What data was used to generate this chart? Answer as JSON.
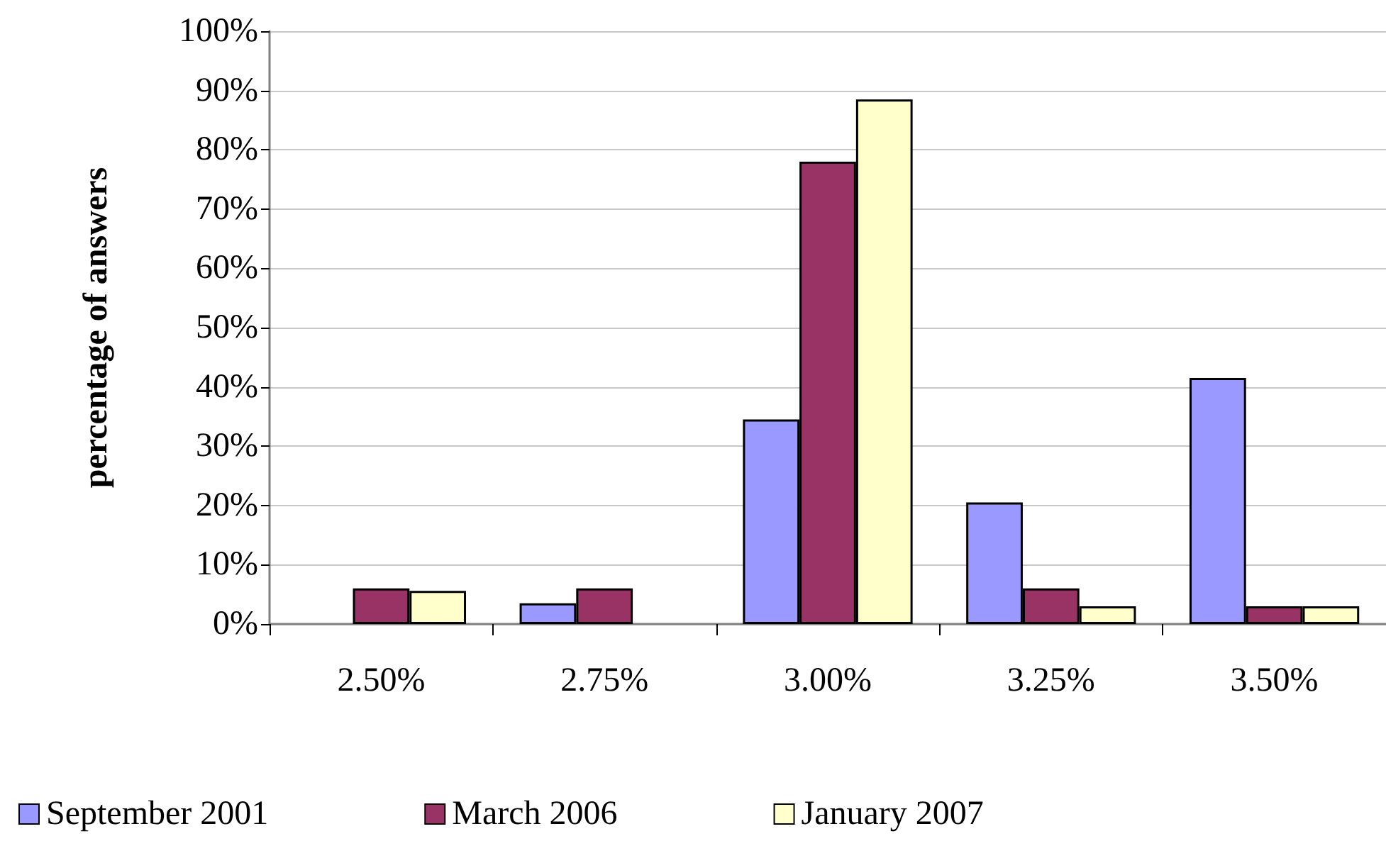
{
  "chart_data": {
    "type": "bar",
    "ylabel": "percentage of answers",
    "categories": [
      "2.50%",
      "2.75%",
      "3.00%",
      "3.25%",
      "3.50%"
    ],
    "series": [
      {
        "name": "September 2001",
        "color": "#9999ff",
        "values": [
          null,
          3.5,
          34.5,
          20.5,
          41.5
        ]
      },
      {
        "name": "March 2006",
        "color": "#993366",
        "values": [
          6,
          6,
          78,
          6,
          3
        ]
      },
      {
        "name": "January 2007",
        "color": "#ffffcc",
        "values": [
          5.6,
          null,
          88.5,
          3,
          3
        ]
      }
    ],
    "ylim": [
      0,
      100
    ],
    "yticks": [
      {
        "value": 0,
        "label": "0%"
      },
      {
        "value": 10,
        "label": "10%"
      },
      {
        "value": 20,
        "label": "20%"
      },
      {
        "value": 30,
        "label": "30%"
      },
      {
        "value": 40,
        "label": "40%"
      },
      {
        "value": 50,
        "label": "50%"
      },
      {
        "value": 60,
        "label": "60%"
      },
      {
        "value": 70,
        "label": "70%"
      },
      {
        "value": 80,
        "label": "80%"
      },
      {
        "value": 90,
        "label": "90%"
      },
      {
        "value": 100,
        "label": "100%"
      }
    ],
    "grid": "y",
    "legend": "bottom"
  }
}
